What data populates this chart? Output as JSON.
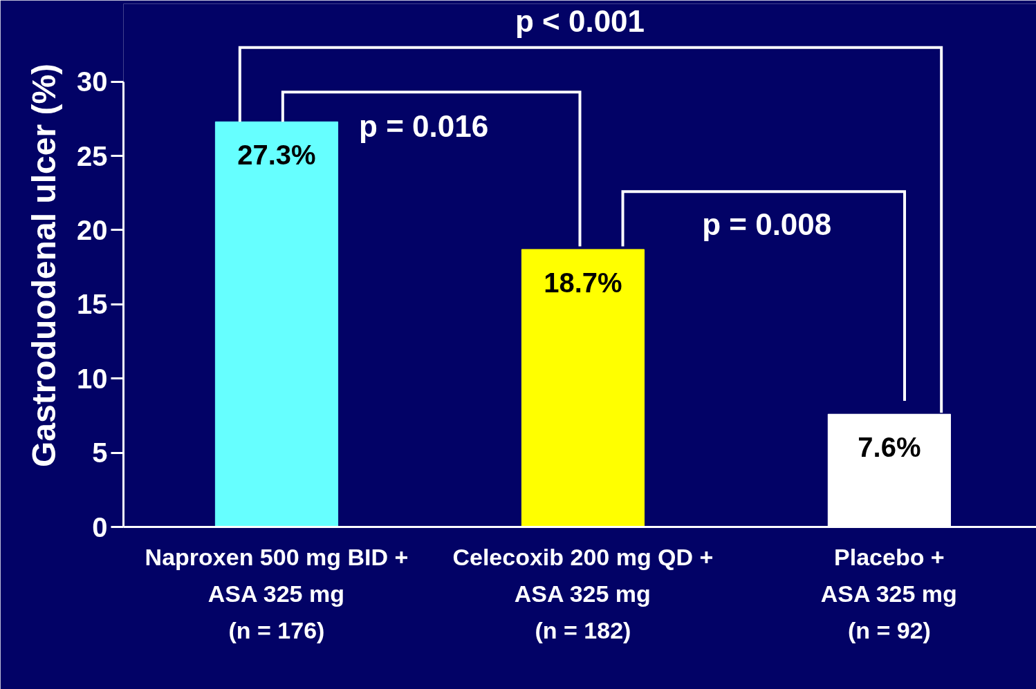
{
  "chart_data": {
    "type": "bar",
    "ylabel": "Gastroduodenal ulcer (%)",
    "categories": [
      "Naproxen 500 mg BID +\nASA 325 mg\n(n = 176)",
      "Celecoxib 200 mg QD +\nASA 325 mg\n(n = 182)",
      "Placebo +\nASA 325 mg\n(n = 92)"
    ],
    "values": [
      27.3,
      18.7,
      7.6
    ],
    "colors": [
      "#66ffff",
      "#ffff00",
      "#ffffff"
    ],
    "value_labels": [
      "27.3%",
      "18.7%",
      "7.6%"
    ],
    "ylim": [
      0,
      30
    ],
    "yticks": [
      0,
      5,
      10,
      15,
      20,
      25,
      30
    ],
    "grid": false,
    "annotations": [
      "p = 0.016",
      "p = 0.008",
      "p < 0.001"
    ]
  }
}
